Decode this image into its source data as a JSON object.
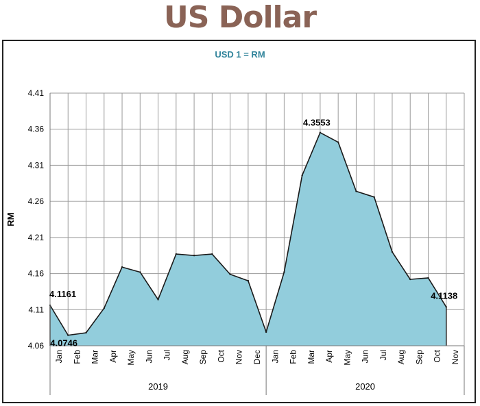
{
  "page_title": "US Dollar",
  "chart_data": {
    "type": "area",
    "title": "USD 1 = RM",
    "ylabel": "RM",
    "xlabel": "",
    "ylim": [
      4.06,
      4.41
    ],
    "yticks": [
      "4.06",
      "4.11",
      "4.16",
      "4.21",
      "4.26",
      "4.31",
      "4.36",
      "4.41"
    ],
    "grid": true,
    "categories": [
      "Jan",
      "Feb",
      "Mar",
      "Apr",
      "May",
      "Jun",
      "Jul",
      "Aug",
      "Sep",
      "Oct",
      "Nov",
      "Dec",
      "Jan",
      "Feb",
      "Mar",
      "Apr",
      "May",
      "Jun",
      "Jul",
      "Aug",
      "Sep",
      "Oct",
      "Nov"
    ],
    "groups": [
      {
        "label": "2019",
        "count": 12
      },
      {
        "label": "2020",
        "count": 11
      }
    ],
    "series": [
      {
        "values": [
          4.1161,
          4.0746,
          4.078,
          4.112,
          4.169,
          4.162,
          4.124,
          4.187,
          4.185,
          4.187,
          4.159,
          4.15,
          4.079,
          4.162,
          4.296,
          4.3553,
          4.342,
          4.274,
          4.266,
          4.19,
          4.152,
          4.154,
          4.1138
        ]
      }
    ],
    "data_labels": [
      {
        "index": 0,
        "text": "4.1161"
      },
      {
        "index": 1,
        "text": "4.0746"
      },
      {
        "index": 15,
        "text": "4.3553"
      },
      {
        "index": 22,
        "text": "4.1138"
      }
    ],
    "colors": {
      "fill": "#92cddc",
      "line": "#1a1a1a",
      "grid": "#9a9a9a",
      "title": "#31849b",
      "page_title": "#8a6356"
    }
  }
}
